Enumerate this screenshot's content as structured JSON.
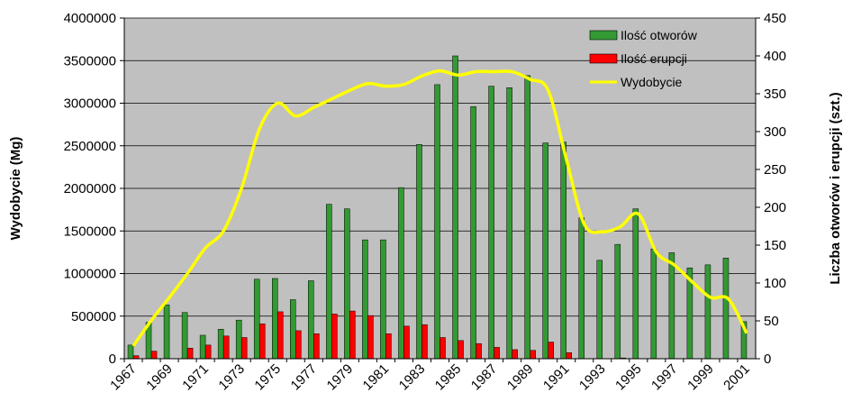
{
  "chart_data": {
    "type": "bar",
    "title": "",
    "ylabel": "Wydobycie (Mg)",
    "y2label": "Liczba otworów i erupcji (szt.)",
    "ylim": [
      0,
      4000000
    ],
    "y2lim": [
      0,
      450
    ],
    "yticks": [
      "0",
      "500000",
      "1000000",
      "1500000",
      "2000000",
      "2500000",
      "3000000",
      "3500000",
      "4000000"
    ],
    "y2ticks": [
      "0",
      "50",
      "100",
      "150",
      "200",
      "250",
      "300",
      "350",
      "400",
      "450"
    ],
    "categories": [
      "1967",
      "1968",
      "1969",
      "1970",
      "1971",
      "1972",
      "1973",
      "1974",
      "1975",
      "1976",
      "1977",
      "1978",
      "1979",
      "1980",
      "1981",
      "1982",
      "1983",
      "1984",
      "1985",
      "1986",
      "1987",
      "1988",
      "1989",
      "1990",
      "1991",
      "1992",
      "1993",
      "1994",
      "1995",
      "1996",
      "1997",
      "1998",
      "1999",
      "2000",
      "2001"
    ],
    "xtick_labels": [
      "1967",
      "1969",
      "1971",
      "1973",
      "1975",
      "1977",
      "1979",
      "1981",
      "1983",
      "1985",
      "1987",
      "1989",
      "1991",
      "1993",
      "1995",
      "1997",
      "1999",
      "2001"
    ],
    "grid": true,
    "legend_position": "top-right",
    "plot_background": "#c0c0c0",
    "series": [
      {
        "name": "Ilość otworów",
        "kind": "bar",
        "axis": "right",
        "color": "#339933",
        "values": [
          18,
          48,
          71,
          61,
          31,
          39,
          51,
          105,
          106,
          78,
          103,
          204,
          198,
          157,
          157,
          226,
          283,
          362,
          400,
          333,
          360,
          358,
          374,
          285,
          286,
          186,
          130,
          151,
          198,
          145,
          140,
          120,
          124,
          133,
          49
        ]
      },
      {
        "name": "Ilość erupcji",
        "kind": "bar",
        "axis": "right",
        "color": "#ff0000",
        "values": [
          4,
          10,
          0,
          14,
          18,
          30,
          28,
          46,
          62,
          37,
          33,
          59,
          63,
          57,
          33,
          43,
          45,
          28,
          24,
          20,
          15,
          12,
          11,
          22,
          8,
          0,
          0,
          1,
          0,
          0,
          0,
          0,
          0,
          0,
          0
        ]
      },
      {
        "name": "Wydobycie",
        "kind": "line",
        "axis": "left",
        "color": "#ffff00",
        "values": [
          150000,
          450000,
          720000,
          1000000,
          1300000,
          1500000,
          2000000,
          2700000,
          3000000,
          2850000,
          2950000,
          3050000,
          3150000,
          3230000,
          3200000,
          3220000,
          3320000,
          3380000,
          3330000,
          3370000,
          3370000,
          3370000,
          3280000,
          3150000,
          2350000,
          1580000,
          1490000,
          1550000,
          1700000,
          1250000,
          1100000,
          900000,
          720000,
          700000,
          300000
        ]
      }
    ]
  }
}
